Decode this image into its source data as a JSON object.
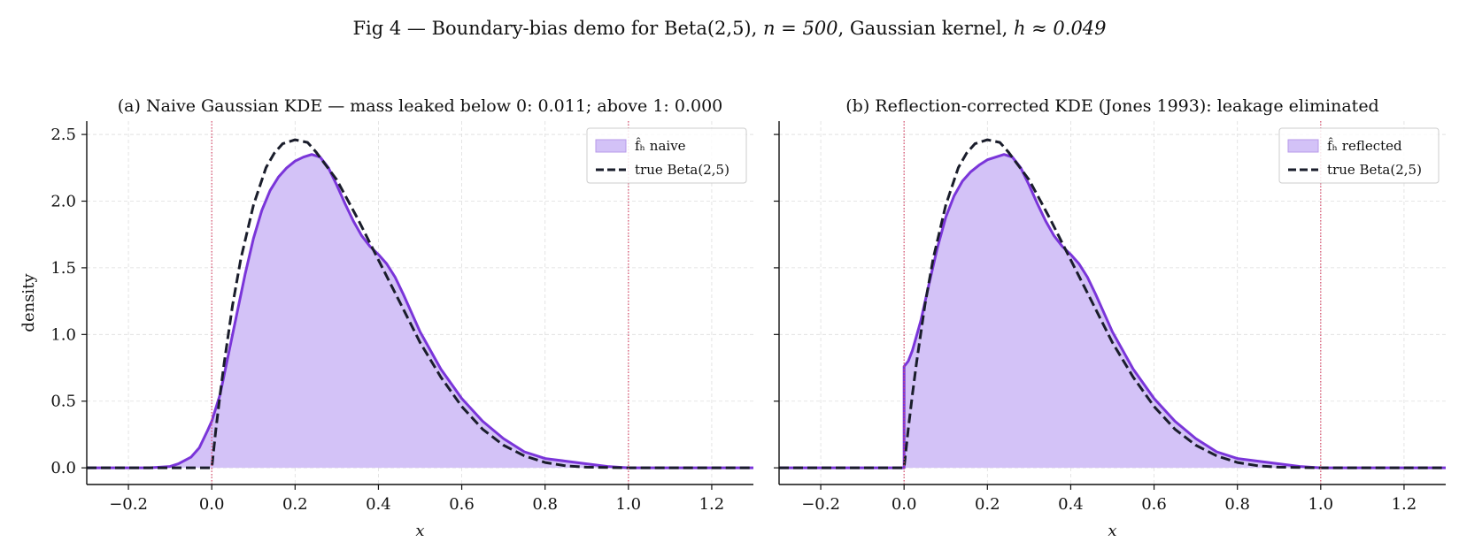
{
  "figure_title": {
    "prefix": "Fig 4 — Boundary-bias demo for Beta(2,5),",
    "n_expr": "n = 500",
    "middle": ", Gaussian kernel,",
    "h_expr": "h ≈ 0.049"
  },
  "colors": {
    "kde_line": "#7a35d9",
    "kde_fill": "#d3c2f7",
    "true_line": "#1a1d2b",
    "boundary": "#d94a6a",
    "grid": "#dddddd"
  },
  "chart_data": [
    {
      "type": "area",
      "title": "(a) Naive Gaussian KDE — mass leaked below 0: 0.011; above 1: 0.000",
      "xlabel": "x",
      "ylabel": "density",
      "xlim": [
        -0.3,
        1.3
      ],
      "ylim": [
        -0.125,
        2.6
      ],
      "xticks": [
        -0.2,
        0.0,
        0.2,
        0.4,
        0.6,
        0.8,
        1.0,
        1.2
      ],
      "xtick_labels": [
        "−0.2",
        "0.0",
        "0.2",
        "0.4",
        "0.6",
        "0.8",
        "1.0",
        "1.2"
      ],
      "yticks": [
        0.0,
        0.5,
        1.0,
        1.5,
        2.0,
        2.5
      ],
      "ytick_labels": [
        "0.0",
        "0.5",
        "1.0",
        "1.5",
        "2.0",
        "2.5"
      ],
      "grid": true,
      "boundary_lines": [
        0.0,
        1.0
      ],
      "legend_position": "top-right",
      "series": [
        {
          "name": "f̂ₕ naive",
          "style": "filled-line",
          "x": [
            -0.3,
            -0.2,
            -0.15,
            -0.1,
            -0.08,
            -0.05,
            -0.03,
            -0.01,
            0.0,
            0.02,
            0.04,
            0.06,
            0.08,
            0.1,
            0.12,
            0.14,
            0.16,
            0.18,
            0.2,
            0.22,
            0.24,
            0.26,
            0.28,
            0.3,
            0.32,
            0.34,
            0.36,
            0.38,
            0.4,
            0.42,
            0.44,
            0.46,
            0.48,
            0.5,
            0.55,
            0.6,
            0.65,
            0.7,
            0.75,
            0.8,
            0.85,
            0.9,
            0.95,
            1.0,
            1.1,
            1.2,
            1.3
          ],
          "y": [
            0.0,
            0.0,
            0.0,
            0.01,
            0.03,
            0.08,
            0.15,
            0.28,
            0.35,
            0.55,
            0.85,
            1.15,
            1.45,
            1.72,
            1.93,
            2.08,
            2.18,
            2.25,
            2.3,
            2.33,
            2.35,
            2.33,
            2.25,
            2.12,
            1.98,
            1.85,
            1.74,
            1.66,
            1.6,
            1.53,
            1.43,
            1.3,
            1.16,
            1.02,
            0.74,
            0.52,
            0.35,
            0.22,
            0.12,
            0.07,
            0.05,
            0.03,
            0.01,
            0.0,
            0.0,
            0.0,
            0.0
          ]
        },
        {
          "name": "true Beta(2,5)",
          "style": "dashed",
          "x": [
            -0.3,
            0.0,
            0.01,
            0.02,
            0.03,
            0.05,
            0.07,
            0.1,
            0.13,
            0.15,
            0.17,
            0.2,
            0.23,
            0.25,
            0.3,
            0.35,
            0.4,
            0.45,
            0.5,
            0.55,
            0.6,
            0.65,
            0.7,
            0.75,
            0.8,
            0.85,
            0.9,
            1.0,
            1.3
          ],
          "y": [
            0.0,
            0.0,
            0.29,
            0.55,
            0.79,
            1.22,
            1.57,
            1.97,
            2.25,
            2.36,
            2.43,
            2.46,
            2.44,
            2.37,
            2.16,
            1.87,
            1.56,
            1.25,
            0.94,
            0.68,
            0.46,
            0.29,
            0.17,
            0.09,
            0.04,
            0.015,
            0.005,
            0.0,
            0.0
          ]
        }
      ]
    },
    {
      "type": "area",
      "title": "(b) Reflection-corrected KDE (Jones 1993): leakage eliminated",
      "xlabel": "x",
      "ylabel": "",
      "xlim": [
        -0.3,
        1.3
      ],
      "ylim": [
        -0.125,
        2.6
      ],
      "xticks": [
        -0.2,
        0.0,
        0.2,
        0.4,
        0.6,
        0.8,
        1.0,
        1.2
      ],
      "xtick_labels": [
        "−0.2",
        "0.0",
        "0.2",
        "0.4",
        "0.6",
        "0.8",
        "1.0",
        "1.2"
      ],
      "yticks": [
        0.0,
        0.5,
        1.0,
        1.5,
        2.0,
        2.5
      ],
      "ytick_labels": [
        "0.0",
        "0.5",
        "1.0",
        "1.5",
        "2.0",
        "2.5"
      ],
      "grid": true,
      "boundary_lines": [
        0.0,
        1.0
      ],
      "legend_position": "top-right",
      "series": [
        {
          "name": "f̂ₕ reflected",
          "style": "filled-line",
          "x": [
            -0.3,
            0.0,
            0.0,
            0.01,
            0.02,
            0.04,
            0.06,
            0.08,
            0.1,
            0.12,
            0.14,
            0.16,
            0.18,
            0.2,
            0.22,
            0.24,
            0.26,
            0.28,
            0.3,
            0.32,
            0.34,
            0.36,
            0.38,
            0.4,
            0.42,
            0.44,
            0.46,
            0.48,
            0.5,
            0.55,
            0.6,
            0.65,
            0.7,
            0.75,
            0.8,
            0.85,
            0.9,
            0.95,
            1.0,
            1.1,
            1.2,
            1.3
          ],
          "y": [
            0.0,
            0.0,
            0.76,
            0.8,
            0.88,
            1.1,
            1.38,
            1.65,
            1.88,
            2.04,
            2.15,
            2.22,
            2.27,
            2.31,
            2.33,
            2.35,
            2.33,
            2.25,
            2.12,
            1.98,
            1.85,
            1.74,
            1.66,
            1.6,
            1.53,
            1.43,
            1.3,
            1.16,
            1.02,
            0.74,
            0.52,
            0.35,
            0.22,
            0.12,
            0.07,
            0.05,
            0.03,
            0.01,
            0.0,
            0.0,
            0.0,
            0.0
          ]
        },
        {
          "name": "true Beta(2,5)",
          "style": "dashed",
          "x": [
            -0.3,
            0.0,
            0.01,
            0.02,
            0.03,
            0.05,
            0.07,
            0.1,
            0.13,
            0.15,
            0.17,
            0.2,
            0.23,
            0.25,
            0.3,
            0.35,
            0.4,
            0.45,
            0.5,
            0.55,
            0.6,
            0.65,
            0.7,
            0.75,
            0.8,
            0.85,
            0.9,
            1.0,
            1.3
          ],
          "y": [
            0.0,
            0.0,
            0.29,
            0.55,
            0.79,
            1.22,
            1.57,
            1.97,
            2.25,
            2.36,
            2.43,
            2.46,
            2.44,
            2.37,
            2.16,
            1.87,
            1.56,
            1.25,
            0.94,
            0.68,
            0.46,
            0.29,
            0.17,
            0.09,
            0.04,
            0.015,
            0.005,
            0.0,
            0.0
          ]
        }
      ]
    }
  ]
}
